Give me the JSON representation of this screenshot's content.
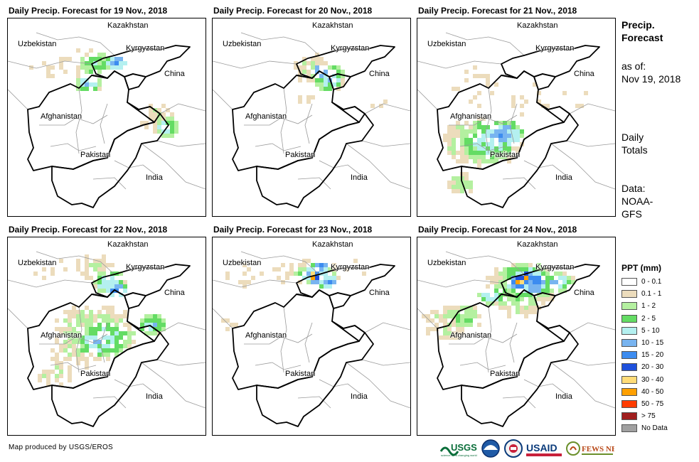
{
  "panels": [
    {
      "title": "Daily Precip. Forecast for 19 Nov., 2018"
    },
    {
      "title": "Daily Precip. Forecast for 20 Nov., 2018"
    },
    {
      "title": "Daily Precip. Forecast for 21 Nov., 2018"
    },
    {
      "title": "Daily Precip. Forecast for 22 Nov., 2018"
    },
    {
      "title": "Daily Precip. Forecast for 23 Nov., 2018"
    },
    {
      "title": "Daily Precip. Forecast for 24 Nov., 2018"
    }
  ],
  "map_labels": {
    "kazakhstan": "Kazakhstan",
    "uzbekistan": "Uzbekistan",
    "kyrgyzstan": "Kyrgyzstan",
    "china": "China",
    "afghanistan": "Afghanistan",
    "pakistan": "Pakistan",
    "india": "India"
  },
  "side": {
    "title": "Precip. Forecast",
    "as_of_label": "as of:",
    "as_of_date": "Nov 19, 2018",
    "totals": "Daily Totals",
    "data_source": "Data: NOAA-GFS"
  },
  "legend": {
    "title": "PPT (mm)",
    "items": [
      {
        "label": "0 - 0.1",
        "color": "#ffffff"
      },
      {
        "label": "0.1 - 1",
        "color": "#ecdcbc"
      },
      {
        "label": "1 - 2",
        "color": "#b4f0a0"
      },
      {
        "label": "2 - 5",
        "color": "#64dc64"
      },
      {
        "label": "5 - 10",
        "color": "#b4f0f0"
      },
      {
        "label": "10 - 15",
        "color": "#78b4f0"
      },
      {
        "label": "15 - 20",
        "color": "#3c8cf0"
      },
      {
        "label": "20 - 30",
        "color": "#1e50dc"
      },
      {
        "label": "30 - 40",
        "color": "#ffdc78"
      },
      {
        "label": "40 - 50",
        "color": "#ffa000"
      },
      {
        "label": "50 - 75",
        "color": "#ff3c00"
      },
      {
        "label": "> 75",
        "color": "#a01e1e"
      },
      {
        "label": "No Data",
        "color": "#a0a0a0"
      }
    ]
  },
  "credit": "Map produced by USGS/EROS",
  "logos": [
    "USGS",
    "NOAA",
    "USAID",
    "FEWS NET"
  ]
}
